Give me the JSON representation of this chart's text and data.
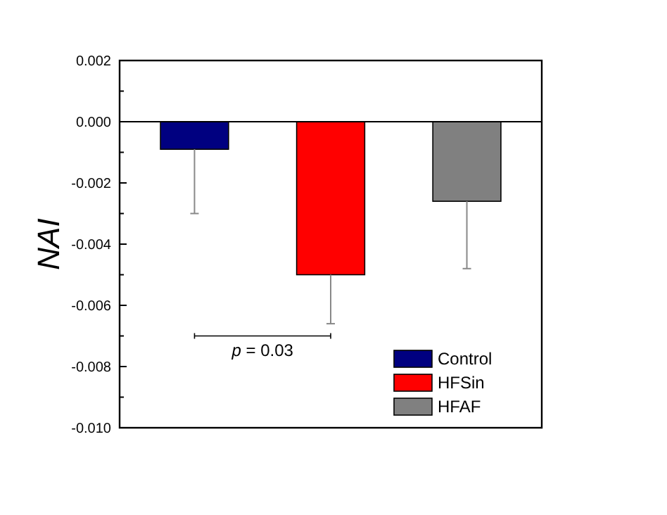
{
  "chart_data": {
    "type": "bar",
    "ylabel": "NAI",
    "categories": [
      null,
      null,
      null
    ],
    "series": [
      {
        "name": "Control",
        "color": "#000080",
        "values": [
          -0.0009,
          null,
          null
        ],
        "errors": [
          [
            -0.003,
            -0.0009
          ],
          null,
          null
        ]
      },
      {
        "name": "HFSin",
        "color": "#ff0000",
        "values": [
          null,
          -0.005,
          null
        ],
        "errors": [
          null,
          [
            -0.0066,
            -0.005
          ],
          null
        ]
      },
      {
        "name": "HFAF",
        "color": "#808080",
        "values": [
          null,
          null,
          -0.0026
        ],
        "errors": [
          null,
          null,
          [
            -0.0048,
            -0.0026
          ]
        ]
      }
    ],
    "ylim": [
      -0.01,
      0.002
    ],
    "yticks": [
      {
        "value": -0.01,
        "label": "-0.010"
      },
      {
        "value": -0.008,
        "label": "-0.008"
      },
      {
        "value": -0.006,
        "label": "-0.006"
      },
      {
        "value": -0.004,
        "label": "-0.004"
      },
      {
        "value": -0.002,
        "label": "-0.002"
      },
      {
        "value": 0,
        "label": "0.000"
      },
      {
        "value": 0.002,
        "label": "0.002"
      }
    ],
    "ref_lines": [
      {
        "axis": "y",
        "value": 0
      }
    ],
    "annotations": [
      "p = 0.03"
    ],
    "legend": "bottom right",
    "grid": false
  }
}
